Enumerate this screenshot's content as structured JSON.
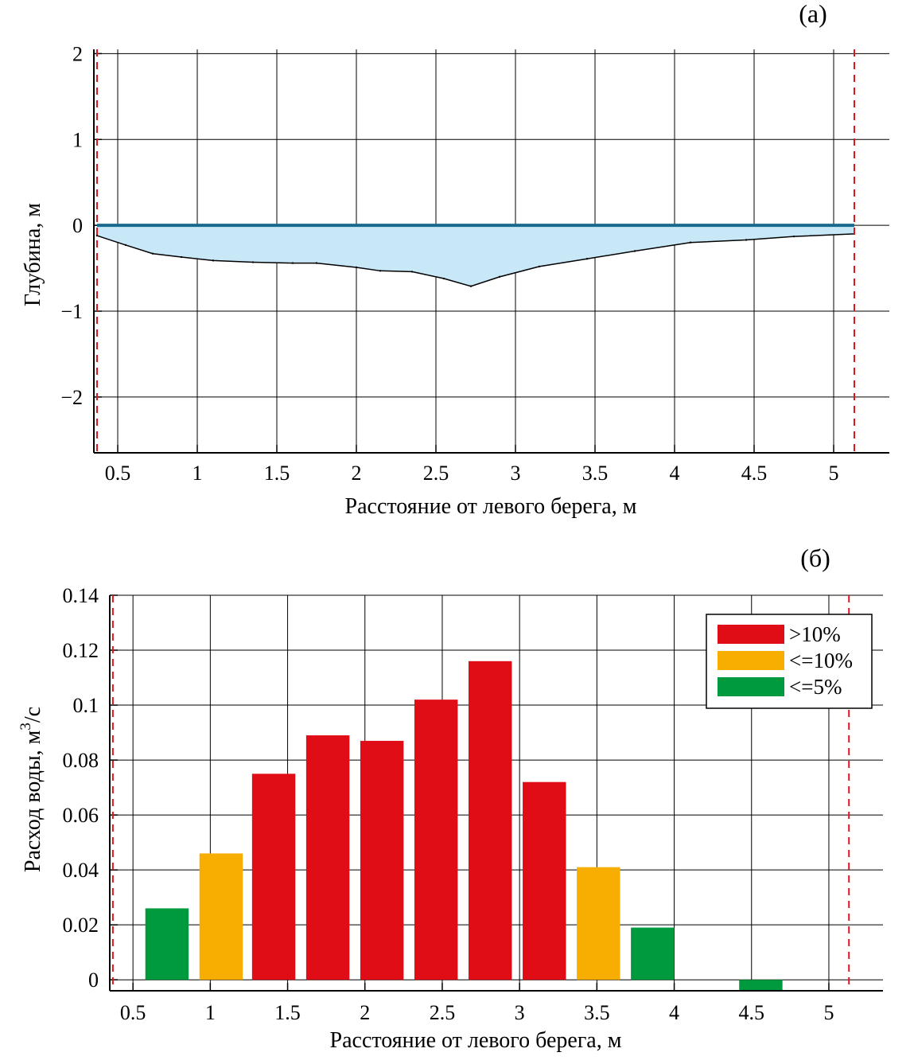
{
  "chart_data": [
    {
      "type": "area",
      "panel_label": "(а)",
      "xlabel": "Расстояние от левого берега, м",
      "ylabel": "Глубина, м",
      "xlim": [
        0.35,
        5.35
      ],
      "ylim": [
        -2.65,
        2.05
      ],
      "xticks": [
        0.5,
        1,
        1.5,
        2,
        2.5,
        3,
        3.5,
        4,
        4.5,
        5
      ],
      "xtick_labels": [
        "0.5",
        "1",
        "1.5",
        "2",
        "2.5",
        "3",
        "3.5",
        "4",
        "4.5",
        "5"
      ],
      "yticks": [
        -2,
        -1,
        0,
        1,
        2
      ],
      "ytick_labels": [
        "−2",
        "−1",
        "0",
        "1",
        "2"
      ],
      "grid": true,
      "water_level": 0,
      "bank_left": 0.37,
      "bank_right": 5.13,
      "colors": {
        "water_fill": "#c8e8f8",
        "surface_line": "#1a6a8e",
        "bank_line": "#e0141e"
      },
      "profile": {
        "x": [
          0.37,
          0.55,
          0.72,
          0.9,
          1.1,
          1.35,
          1.6,
          1.75,
          2.0,
          2.15,
          2.35,
          2.55,
          2.72,
          2.9,
          3.15,
          3.45,
          3.75,
          4.1,
          4.45,
          4.75,
          5.13
        ],
        "y": [
          -0.12,
          -0.23,
          -0.33,
          -0.37,
          -0.41,
          -0.43,
          -0.44,
          -0.44,
          -0.49,
          -0.53,
          -0.54,
          -0.62,
          -0.71,
          -0.6,
          -0.48,
          -0.39,
          -0.3,
          -0.2,
          -0.17,
          -0.13,
          -0.1
        ]
      }
    },
    {
      "type": "bar",
      "panel_label": "(б)",
      "xlabel": "Расстояние от левого берега, м",
      "ylabel_main": "Расход воды, м",
      "ylabel_sup": "3",
      "ylabel_tail": "/с",
      "xlim": [
        0.35,
        5.35
      ],
      "ylim": [
        -0.004,
        0.14
      ],
      "xticks": [
        0.5,
        1,
        1.5,
        2,
        2.5,
        3,
        3.5,
        4,
        4.5,
        5
      ],
      "xtick_labels": [
        "0.5",
        "1",
        "1.5",
        "2",
        "2.5",
        "3",
        "3.5",
        "4",
        "4.5",
        "5"
      ],
      "yticks": [
        0,
        0.02,
        0.04,
        0.06,
        0.08,
        0.1,
        0.12,
        0.14
      ],
      "ytick_labels": [
        "0",
        "0.02",
        "0.04",
        "0.06",
        "0.08",
        "0.1",
        "0.12",
        "0.14"
      ],
      "grid": true,
      "bank_left": 0.37,
      "bank_right": 5.13,
      "bar_width": 0.28,
      "legend_position": "top-right",
      "legend": [
        {
          "label": ">10%",
          "color": "#e00d17"
        },
        {
          "label": "<=10%",
          "color": "#f7ae00"
        },
        {
          "label": "<=5%",
          "color": "#009a3e"
        }
      ],
      "bars": [
        {
          "x": 0.72,
          "value": 0.026,
          "cls": 2
        },
        {
          "x": 1.07,
          "value": 0.046,
          "cls": 1
        },
        {
          "x": 1.41,
          "value": 0.075,
          "cls": 0
        },
        {
          "x": 1.76,
          "value": 0.089,
          "cls": 0
        },
        {
          "x": 2.11,
          "value": 0.087,
          "cls": 0
        },
        {
          "x": 2.46,
          "value": 0.102,
          "cls": 0
        },
        {
          "x": 2.81,
          "value": 0.116,
          "cls": 0
        },
        {
          "x": 3.16,
          "value": 0.072,
          "cls": 0
        },
        {
          "x": 3.51,
          "value": 0.041,
          "cls": 1
        },
        {
          "x": 3.86,
          "value": 0.019,
          "cls": 2
        },
        {
          "x": 4.56,
          "value": -0.004,
          "cls": 2
        }
      ]
    }
  ]
}
